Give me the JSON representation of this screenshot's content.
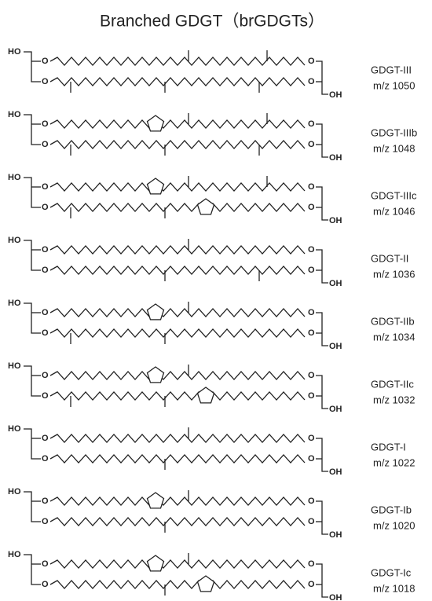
{
  "title": "Branched GDGT（brGDGTs）",
  "molecules": [
    {
      "name": "GDGT-III",
      "mz": "m/z 1050",
      "atoms": [
        "HO",
        "O",
        "O",
        "O",
        "O",
        "OH"
      ]
    },
    {
      "name": "GDGT-IIIb",
      "mz": "m/z 1048",
      "atoms": [
        "HO",
        "O",
        "O",
        "O",
        "O",
        "OH"
      ]
    },
    {
      "name": "GDGT-IIIc",
      "mz": "m/z 1046",
      "atoms": [
        "HO",
        "O",
        "O",
        "O",
        "O",
        "OH"
      ]
    },
    {
      "name": "GDGT-II",
      "mz": "m/z 1036",
      "atoms": [
        "HO",
        "O",
        "O",
        "O",
        "O",
        "OH"
      ]
    },
    {
      "name": "GDGT-IIb",
      "mz": "m/z 1034",
      "atoms": [
        "HO",
        "O",
        "O",
        "O",
        "O",
        "OH"
      ]
    },
    {
      "name": "GDGT-IIc",
      "mz": "m/z 1032",
      "atoms": [
        "HO",
        "O",
        "O",
        "O",
        "O",
        "OH"
      ]
    },
    {
      "name": "GDGT-I",
      "mz": "m/z 1022",
      "atoms": [
        "HO",
        "O",
        "O",
        "O",
        "O",
        "OH"
      ]
    },
    {
      "name": "GDGT-Ib",
      "mz": "m/z 1020",
      "atoms": [
        "HO",
        "O",
        "O",
        "O",
        "O",
        "OH"
      ]
    },
    {
      "name": "GDGT-Ic",
      "mz": "m/z 1018",
      "atoms": [
        "HO",
        "O",
        "O",
        "O",
        "O",
        "OH"
      ]
    }
  ]
}
